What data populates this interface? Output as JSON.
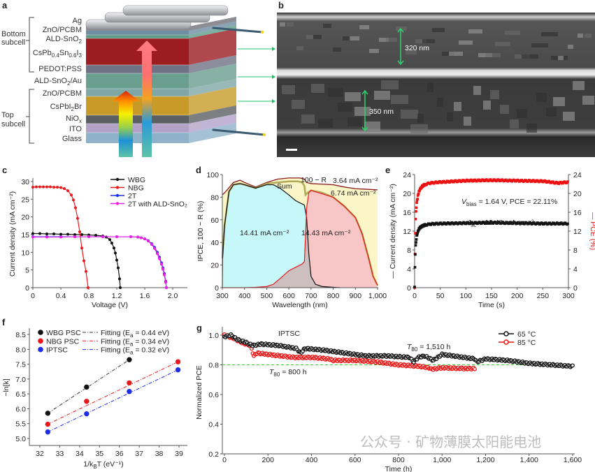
{
  "panel_labels": {
    "a": "a",
    "b": "b",
    "c": "c",
    "d": "d",
    "e": "e",
    "f": "f",
    "g": "g"
  },
  "panel_a": {
    "group_bottom": [
      "Bottom",
      "subcell"
    ],
    "group_top": [
      "Top",
      "subcell"
    ],
    "layers": {
      "ag": "Ag",
      "zno_pcbm_1": "ZnO/PCBM",
      "ald_sno2": [
        "ALD-SnO",
        "2"
      ],
      "cspbsni": [
        "CsPb",
        "0.4",
        "Sn",
        "0.6",
        "I",
        "3"
      ],
      "pedot": "PEDOT:PSS",
      "ald_sno2_au": [
        "ALD-SnO",
        "2",
        "/Au"
      ],
      "zno_pcbm_2": "ZnO/PCBM",
      "cspbi2br": [
        "CsPbI",
        "2",
        "Br"
      ],
      "niox": [
        "NiO",
        "x"
      ],
      "ito": "ITO",
      "glass": "Glass"
    },
    "colors": {
      "ag": "#a9a9ad",
      "zno": "#6f8ea3",
      "ald": "#5d9c8a",
      "perov_nbg": "#9c1c20",
      "pedot": "#6f7184",
      "recomb": "#6a9e8e",
      "zno2": "#7fa7a6",
      "perov_wbg": "#c89b28",
      "niox": "#5b5f62",
      "ito": "#b3a2c8",
      "glass": "#8eb2c9"
    }
  },
  "panel_b": {
    "scale_top": "320 nm",
    "scale_bottom": "350 nm"
  },
  "watermark": "公众号 · 矿物薄膜太阳能电池",
  "chart_data": [
    {
      "id": "c",
      "type": "line",
      "xlabel": "Voltage (V)",
      "ylabel": "Current density (mA cm⁻²)",
      "xlim": [
        0,
        2.2
      ],
      "ylim": [
        0,
        30
      ],
      "xticks": [
        "0",
        "0.4",
        "0.8",
        "1.2",
        "1.6",
        "2.0"
      ],
      "yticks": [
        "0",
        "5",
        "10",
        "15",
        "20",
        "25",
        "30"
      ],
      "legend_position": "top-right",
      "series": [
        {
          "name": "WBG",
          "color": "#111111",
          "x": [
            0,
            0.1,
            0.2,
            0.3,
            0.4,
            0.5,
            0.6,
            0.7,
            0.8,
            0.9,
            1.0,
            1.05,
            1.1,
            1.13,
            1.16,
            1.18,
            1.2,
            1.22,
            1.24,
            1.25
          ],
          "y": [
            15.3,
            15.3,
            15.2,
            15.2,
            15.1,
            15.1,
            15.0,
            15.0,
            14.9,
            14.8,
            14.6,
            14.3,
            13.6,
            12.6,
            11.2,
            9.8,
            7.8,
            5.6,
            2.5,
            0
          ]
        },
        {
          "name": "NBG",
          "color": "#e8191c",
          "x": [
            0,
            0.05,
            0.1,
            0.15,
            0.2,
            0.25,
            0.3,
            0.35,
            0.4,
            0.45,
            0.5,
            0.55,
            0.58,
            0.61,
            0.64,
            0.67,
            0.7,
            0.73,
            0.76,
            0.79
          ],
          "y": [
            28.4,
            28.5,
            28.5,
            28.5,
            28.5,
            28.5,
            28.4,
            28.4,
            28.3,
            28.0,
            27.4,
            26.2,
            24.8,
            22.6,
            19.6,
            15.8,
            11.2,
            7.6,
            4.6,
            0
          ]
        },
        {
          "name": "2T",
          "color": "#1d2ee8",
          "x": [
            0,
            0.2,
            0.4,
            0.6,
            0.8,
            1.0,
            1.2,
            1.4,
            1.5,
            1.55,
            1.6,
            1.65,
            1.7,
            1.74,
            1.78,
            1.81,
            1.84,
            1.86,
            1.88,
            1.9,
            1.91
          ],
          "y": [
            14.4,
            14.4,
            14.4,
            14.4,
            14.4,
            14.4,
            14.4,
            14.4,
            14.3,
            14.1,
            13.8,
            13.3,
            12.4,
            11.4,
            10.0,
            8.6,
            7.0,
            5.6,
            4.0,
            1.8,
            0
          ]
        },
        {
          "name": "2T with ALD-SnO₂",
          "color": "#ee1ee8",
          "x": [
            0,
            0.2,
            0.4,
            0.6,
            0.8,
            1.0,
            1.2,
            1.4,
            1.5,
            1.55,
            1.6,
            1.65,
            1.7,
            1.74,
            1.78,
            1.81,
            1.84,
            1.86,
            1.88,
            1.9,
            1.91
          ],
          "y": [
            14.3,
            14.3,
            14.3,
            14.4,
            14.4,
            14.4,
            14.4,
            14.4,
            14.3,
            14.1,
            13.8,
            13.2,
            12.2,
            11.1,
            9.6,
            8.2,
            6.6,
            5.2,
            3.6,
            1.5,
            0
          ]
        }
      ]
    },
    {
      "id": "d",
      "type": "area",
      "xlabel": "Wavelength (nm)",
      "ylabel": "IPCE, 100 − R (%)",
      "xlim": [
        300,
        1000
      ],
      "ylim": [
        0,
        100
      ],
      "xticks": [
        "300",
        "400",
        "500",
        "600",
        "700",
        "800",
        "900",
        "1,000"
      ],
      "yticks": [
        "0",
        "20",
        "40",
        "60",
        "80",
        "100"
      ],
      "annotations": {
        "reflect": "100 − R",
        "reflect_loss": "3.64 mA cm⁻²",
        "sum": "Sum",
        "gap_loss": "6.74 mA cm⁻²",
        "wbg_jsc": "14.41 mA cm⁻²",
        "nbg_jsc": "14.43 mA cm⁻²"
      },
      "series": [
        {
          "name": "100 − R",
          "color": "#8b1a1a",
          "x": [
            300,
            320,
            350,
            380,
            400,
            450,
            500,
            550,
            600,
            650,
            670,
            680,
            700,
            750,
            800,
            850,
            900,
            950,
            1000
          ],
          "y": [
            82,
            86,
            93,
            95,
            93,
            89,
            93,
            96,
            97,
            97,
            96,
            93,
            92,
            91.5,
            91,
            89,
            87.5,
            87,
            86.5
          ]
        },
        {
          "name": "Sum",
          "color": "#a6a14a",
          "x": [
            300,
            310,
            330,
            350,
            380,
            400,
            450,
            500,
            550,
            600,
            640,
            660,
            670,
            675,
            685,
            700,
            750,
            800,
            850,
            900,
            930,
            960,
            980,
            1000
          ],
          "y": [
            26,
            55,
            85,
            91,
            92,
            91,
            88,
            92,
            93,
            94,
            94,
            93,
            90,
            82,
            84,
            86,
            84,
            80,
            72,
            62,
            48,
            26,
            10,
            2
          ]
        },
        {
          "name": "WBG IPCE",
          "color": "#111111",
          "fill": "#c6f7f9",
          "x": [
            300,
            301,
            310,
            330,
            350,
            380,
            400,
            450,
            500,
            530,
            560,
            600,
            630,
            660,
            670,
            680,
            690,
            700,
            720,
            750,
            800,
            830
          ],
          "y": [
            0,
            26,
            55,
            85,
            91,
            92,
            91,
            88,
            91,
            91,
            88,
            82,
            77,
            74,
            73,
            62,
            30,
            10,
            3,
            1,
            0.3,
            0
          ]
        },
        {
          "name": "NBG IPCE",
          "color": "#e8191c",
          "fill": "#f8c6c6",
          "x": [
            300,
            400,
            450,
            500,
            530,
            560,
            600,
            630,
            660,
            670,
            675,
            680,
            690,
            700,
            750,
            800,
            850,
            900,
            930,
            960,
            980,
            1000
          ],
          "y": [
            0,
            0,
            0.3,
            1,
            3,
            8,
            15,
            18,
            21,
            23,
            45,
            70,
            84,
            86,
            83,
            80,
            72,
            62,
            48,
            26,
            10,
            2
          ]
        }
      ]
    },
    {
      "id": "e",
      "type": "scatter",
      "xlabel": "Time (s)",
      "ylabel": "— Current density (mA cm⁻²)",
      "y2label": "— PCE (%)",
      "xlim": [
        0,
        300
      ],
      "ylim": [
        0,
        24
      ],
      "y2lim": [
        0,
        24
      ],
      "xticks": [
        "0",
        "50",
        "100",
        "150",
        "200",
        "250",
        "300"
      ],
      "yticks": [
        "0",
        "4",
        "8",
        "12",
        "16",
        "20",
        "24"
      ],
      "annotations": {
        "vbias": "V",
        "vbias_sub": "bias",
        "vbias_rest": " = 1.64 V,  PCE = 22.11%",
        "jsc": "J",
        "jsc_sub": "sc",
        "jsc_rest": " = 13.48 mA cm⁻²"
      },
      "series": [
        {
          "name": "PCE",
          "axis": "right",
          "color": "#ee1111",
          "x": [
            0,
            1,
            2,
            3,
            4,
            6,
            8,
            10,
            15,
            20,
            30,
            50,
            100,
            150,
            200,
            250,
            280,
            300
          ],
          "y": [
            0,
            10,
            14.3,
            16.5,
            17.8,
            19.3,
            20.2,
            20.8,
            21.5,
            21.9,
            22.2,
            22.4,
            22.7,
            22.8,
            22.7,
            22.6,
            22.2,
            22.4
          ]
        },
        {
          "name": "Current density",
          "axis": "left",
          "color": "#111111",
          "x": [
            0,
            1,
            2,
            3,
            4,
            6,
            8,
            10,
            15,
            20,
            30,
            50,
            100,
            150,
            200,
            250,
            280,
            300
          ],
          "y": [
            0,
            6.2,
            8.7,
            9.9,
            10.8,
            11.8,
            12.3,
            12.7,
            13.1,
            13.3,
            13.5,
            13.6,
            13.7,
            13.8,
            13.7,
            13.6,
            13.6,
            13.6
          ]
        }
      ]
    },
    {
      "id": "f",
      "type": "scatter",
      "xlabel": [
        "1/k",
        "B",
        "T (eV⁻¹)"
      ],
      "ylabel": "−ln[k]",
      "xlim": [
        31.8,
        39.4
      ],
      "ylim": [
        4.8,
        8.7
      ],
      "xticks": [
        "32",
        "33",
        "34",
        "35",
        "36",
        "37",
        "38",
        "39"
      ],
      "yticks": [
        "5.0",
        "5.5",
        "6.0",
        "6.5",
        "7.0",
        "7.5",
        "8.0",
        "8.5"
      ],
      "legend_position": "top-left",
      "series": [
        {
          "name": "WBG PSC",
          "fit": [
            "Fitting (E",
            "a",
            " = 0.44 eV)"
          ],
          "color": "#111111",
          "fitcolor": "#333333",
          "x": [
            32.4,
            34.35,
            36.5
          ],
          "y": [
            5.85,
            6.73,
            7.65
          ]
        },
        {
          "name": "NBG PSC",
          "fit": [
            "Fitting (E",
            "a",
            " = 0.34 eV)"
          ],
          "color": "#e8191c",
          "fitcolor": "#e8191c",
          "x": [
            32.4,
            34.35,
            36.5,
            38.95
          ],
          "y": [
            5.48,
            6.25,
            6.87,
            7.58
          ]
        },
        {
          "name": "IPTSC",
          "fit": [
            "Fitting (E",
            "a",
            " = 0.32 eV)"
          ],
          "color": "#1d2ee8",
          "fitcolor": "#1d2ee8",
          "x": [
            32.4,
            34.35,
            36.5,
            38.95
          ],
          "y": [
            5.22,
            5.83,
            6.58,
            7.31
          ]
        }
      ]
    },
    {
      "id": "g",
      "type": "line",
      "title": "IPTSC",
      "xlabel": "Time (h)",
      "ylabel": "Normalized PCE",
      "xlim": [
        0,
        1600
      ],
      "ylim": [
        0.2,
        1.03
      ],
      "xticks": [
        "0",
        "200",
        "400",
        "600",
        "800",
        "1,000",
        "1,200",
        "1,400",
        "1,600"
      ],
      "yticks": [
        "0.2",
        "0.4",
        "0.6",
        "0.8",
        "1.0"
      ],
      "reference_line": 0.8,
      "legend_position": "top-right",
      "annotations": {
        "t80_65": [
          "T",
          "80",
          " = 1,510 h"
        ],
        "t80_85": [
          "T",
          "80",
          " = 800 h"
        ]
      },
      "series": [
        {
          "name": "65 °C",
          "color": "#111111",
          "x": [
            0,
            30,
            60,
            100,
            130,
            170,
            250,
            330,
            350,
            370,
            450,
            550,
            650,
            750,
            850,
            870,
            890,
            920,
            960,
            1000,
            1050,
            1100,
            1150,
            1160,
            1200,
            1300,
            1400,
            1500,
            1600
          ],
          "y": [
            0.99,
            1.0,
            0.97,
            0.95,
            0.93,
            0.94,
            0.93,
            0.91,
            0.88,
            0.91,
            0.9,
            0.88,
            0.86,
            0.86,
            0.85,
            0.82,
            0.85,
            0.86,
            0.83,
            0.87,
            0.86,
            0.85,
            0.84,
            0.82,
            0.84,
            0.83,
            0.81,
            0.8,
            0.79
          ]
        },
        {
          "name": "85 °C",
          "color": "#ee1111",
          "x": [
            0,
            40,
            80,
            120,
            135,
            150,
            200,
            260,
            320,
            400,
            480,
            500,
            600,
            700,
            800,
            900,
            940,
            950,
            1000,
            1100,
            1150
          ],
          "y": [
            1.0,
            0.98,
            0.95,
            0.93,
            0.86,
            0.88,
            0.87,
            0.86,
            0.85,
            0.85,
            0.84,
            0.83,
            0.83,
            0.82,
            0.8,
            0.79,
            0.78,
            0.77,
            0.78,
            0.775,
            0.775
          ]
        }
      ]
    }
  ]
}
